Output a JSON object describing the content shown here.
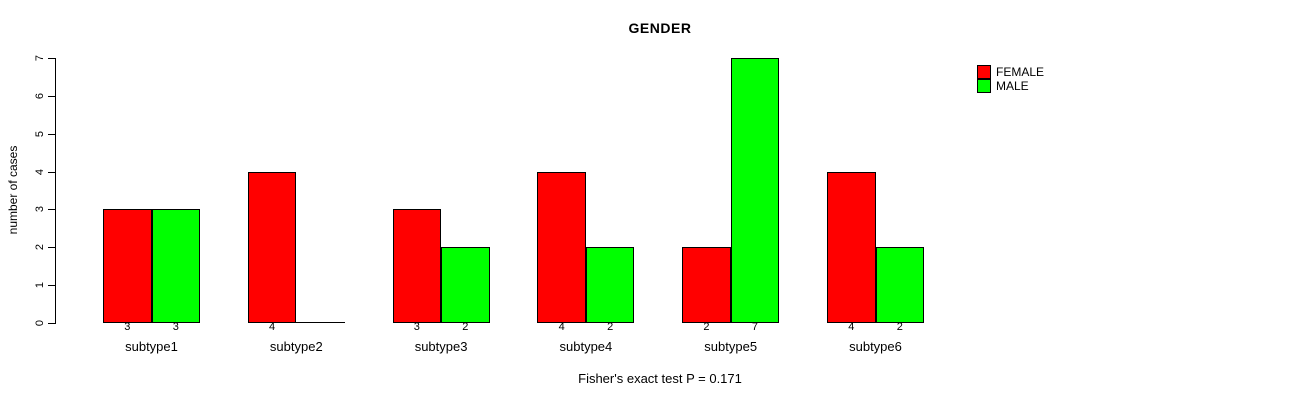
{
  "title": "GENDER",
  "footer": "Fisher's exact test P = 0.171",
  "colors": {
    "female": "#FF0000",
    "male": "#00FF00",
    "axis": "#000000",
    "background": "#FFFFFF"
  },
  "chart_data": {
    "type": "bar",
    "grouped": true,
    "title": "GENDER",
    "xlabel": "",
    "ylabel": "number of cases",
    "categories": [
      "subtype1",
      "subtype2",
      "subtype3",
      "subtype4",
      "subtype5",
      "subtype6"
    ],
    "series": [
      {
        "name": "FEMALE",
        "color": "#FF0000",
        "values": [
          3,
          4,
          3,
          4,
          2,
          4
        ]
      },
      {
        "name": "MALE",
        "color": "#00FF00",
        "values": [
          3,
          0,
          2,
          2,
          7,
          2
        ]
      }
    ],
    "ylim": [
      0,
      7
    ],
    "yticks": [
      0,
      1,
      2,
      3,
      4,
      5,
      6,
      7
    ],
    "bar_value_labels": true,
    "value_labels_hidden_when_zero": true,
    "grid": false,
    "legend_position": "top-right",
    "annotation": "Fisher's exact test P = 0.171"
  }
}
